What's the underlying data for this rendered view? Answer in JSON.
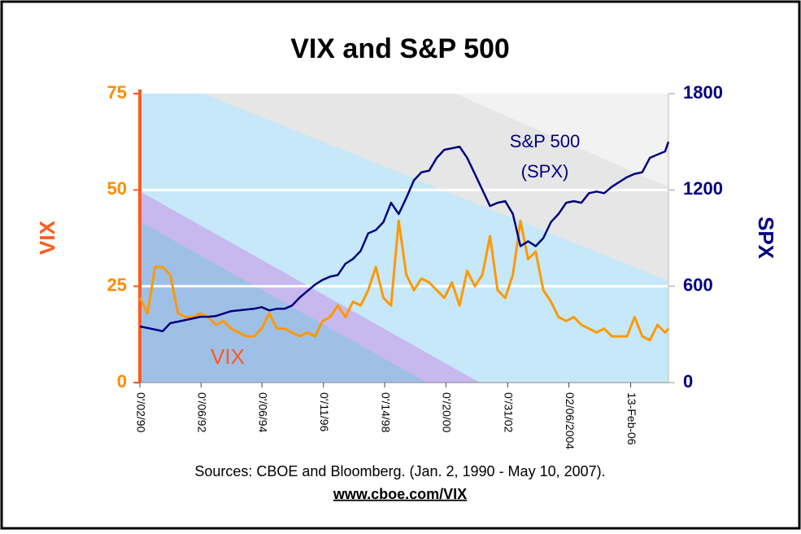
{
  "chart_data": {
    "type": "line",
    "title": "VIX and S&P 500",
    "y_label": "VIX",
    "y2_label": "SPX",
    "annotations": [
      "S&P 500",
      "(SPX)",
      "VIX"
    ],
    "source": "Sources: CBOE and Bloomberg.  (Jan. 2, 1990 - May 10, 2007).",
    "url": "www.cboe.com/VIX",
    "x": [
      1990,
      1990.25,
      1990.5,
      1990.75,
      1991,
      1991.25,
      1991.5,
      1991.75,
      1992,
      1992.25,
      1992.5,
      1992.75,
      1993,
      1993.25,
      1993.5,
      1993.75,
      1994,
      1994.25,
      1994.5,
      1994.75,
      1995,
      1995.25,
      1995.5,
      1995.75,
      1996,
      1996.25,
      1996.5,
      1996.75,
      1997,
      1997.25,
      1997.5,
      1997.75,
      1998,
      1998.25,
      1998.5,
      1998.75,
      1999,
      1999.25,
      1999.5,
      1999.75,
      2000,
      2000.25,
      2000.5,
      2000.75,
      2001,
      2001.25,
      2001.5,
      2001.75,
      2002,
      2002.25,
      2002.5,
      2002.75,
      2003,
      2003.25,
      2003.5,
      2003.75,
      2004,
      2004.25,
      2004.5,
      2004.75,
      2005,
      2005.25,
      2005.5,
      2005.75,
      2006,
      2006.25,
      2006.5,
      2006.75,
      2007,
      2007.25,
      2007.36
    ],
    "series": [
      {
        "name": "VIX",
        "color": "#ff9900",
        "axis": "y",
        "values": [
          22,
          18,
          30,
          30,
          28,
          18,
          17,
          17,
          18,
          17,
          15,
          16,
          14,
          13,
          12,
          12,
          14,
          18,
          14,
          14,
          13,
          12,
          13,
          12,
          16,
          17,
          20,
          17,
          21,
          20,
          24,
          30,
          22,
          20,
          42,
          28,
          24,
          27,
          26,
          24,
          22,
          26,
          20,
          29,
          25,
          28,
          38,
          24,
          22,
          28,
          42,
          32,
          34,
          24,
          21,
          17,
          16,
          17,
          15,
          14,
          13,
          14,
          12,
          12,
          12,
          17,
          12,
          11,
          15,
          13,
          14
        ]
      },
      {
        "name": "S&P 500",
        "color": "#000080",
        "axis": "y2",
        "values": [
          350,
          340,
          330,
          320,
          370,
          380,
          390,
          400,
          410,
          410,
          415,
          430,
          445,
          450,
          455,
          460,
          470,
          450,
          460,
          460,
          480,
          530,
          570,
          610,
          640,
          660,
          670,
          740,
          770,
          820,
          930,
          950,
          1000,
          1120,
          1050,
          1150,
          1260,
          1310,
          1320,
          1400,
          1450,
          1460,
          1470,
          1400,
          1300,
          1200,
          1100,
          1120,
          1130,
          1050,
          850,
          880,
          850,
          900,
          1000,
          1050,
          1120,
          1130,
          1120,
          1180,
          1190,
          1180,
          1220,
          1250,
          1280,
          1300,
          1310,
          1400,
          1420,
          1440,
          1500
        ]
      }
    ],
    "xlim": [
      1990,
      2007.36
    ],
    "xticks": [
      {
        "value": 1990.0,
        "label": "0'/02/90"
      },
      {
        "value": 1992.01,
        "label": "0'/06/92"
      },
      {
        "value": 1994.01,
        "label": "0'/06/94"
      },
      {
        "value": 1996.03,
        "label": "0'/11/96"
      },
      {
        "value": 1998.04,
        "label": "0'/14/98"
      },
      {
        "value": 2000.05,
        "label": "0'/20/00"
      },
      {
        "value": 2002.08,
        "label": "0'/31/02"
      },
      {
        "value": 2004.09,
        "label": "02/06/2004"
      },
      {
        "value": 2006.12,
        "label": "13-Feb-06"
      }
    ],
    "ylim": [
      0,
      75
    ],
    "yticks": [
      0,
      25,
      50,
      75
    ],
    "y2lim": [
      0,
      1800
    ],
    "y2ticks": [
      0,
      600,
      1200,
      1800
    ],
    "grid": true
  }
}
